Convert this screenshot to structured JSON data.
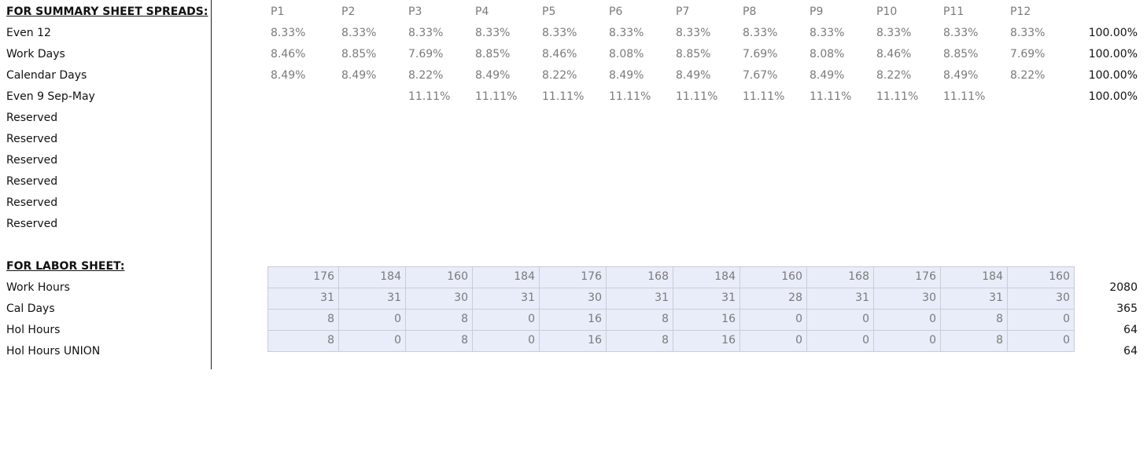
{
  "summary": {
    "header": "FOR SUMMARY SHEET SPREADS:",
    "periods": [
      "P1",
      "P2",
      "P3",
      "P4",
      "P5",
      "P6",
      "P7",
      "P8",
      "P9",
      "P10",
      "P11",
      "P12"
    ],
    "rows": [
      {
        "label": "Even 12",
        "values": [
          "8.33%",
          "8.33%",
          "8.33%",
          "8.33%",
          "8.33%",
          "8.33%",
          "8.33%",
          "8.33%",
          "8.33%",
          "8.33%",
          "8.33%",
          "8.33%"
        ],
        "total": "100.00%"
      },
      {
        "label": "Work Days",
        "values": [
          "8.46%",
          "8.85%",
          "7.69%",
          "8.85%",
          "8.46%",
          "8.08%",
          "8.85%",
          "7.69%",
          "8.08%",
          "8.46%",
          "8.85%",
          "7.69%"
        ],
        "total": "100.00%"
      },
      {
        "label": "Calendar Days",
        "values": [
          "8.49%",
          "8.49%",
          "8.22%",
          "8.49%",
          "8.22%",
          "8.49%",
          "8.49%",
          "7.67%",
          "8.49%",
          "8.22%",
          "8.49%",
          "8.22%"
        ],
        "total": "100.00%"
      },
      {
        "label": "Even 9 Sep-May",
        "values": [
          null,
          null,
          "11.11%",
          "11.11%",
          "11.11%",
          "11.11%",
          "11.11%",
          "11.11%",
          "11.11%",
          "11.11%",
          "11.11%",
          null
        ],
        "total": "100.00%"
      },
      {
        "label": "Reserved"
      },
      {
        "label": "Reserved"
      },
      {
        "label": "Reserved"
      },
      {
        "label": "Reserved"
      },
      {
        "label": "Reserved"
      },
      {
        "label": "Reserved"
      }
    ]
  },
  "labor": {
    "header": "FOR LABOR SHEET:",
    "rows": [
      {
        "label": "Work Hours",
        "values": [
          176,
          184,
          160,
          184,
          176,
          168,
          184,
          160,
          168,
          176,
          184,
          160
        ],
        "total": 2080
      },
      {
        "label": "Cal Days",
        "values": [
          31,
          31,
          30,
          31,
          30,
          31,
          31,
          28,
          31,
          30,
          31,
          30
        ],
        "total": 365
      },
      {
        "label": "Hol Hours",
        "values": [
          8,
          0,
          8,
          0,
          16,
          8,
          16,
          0,
          0,
          0,
          8,
          0
        ],
        "total": 64
      },
      {
        "label": "Hol Hours UNION",
        "values": [
          8,
          0,
          8,
          0,
          16,
          8,
          16,
          0,
          0,
          0,
          8,
          0
        ],
        "total": 64
      }
    ]
  }
}
